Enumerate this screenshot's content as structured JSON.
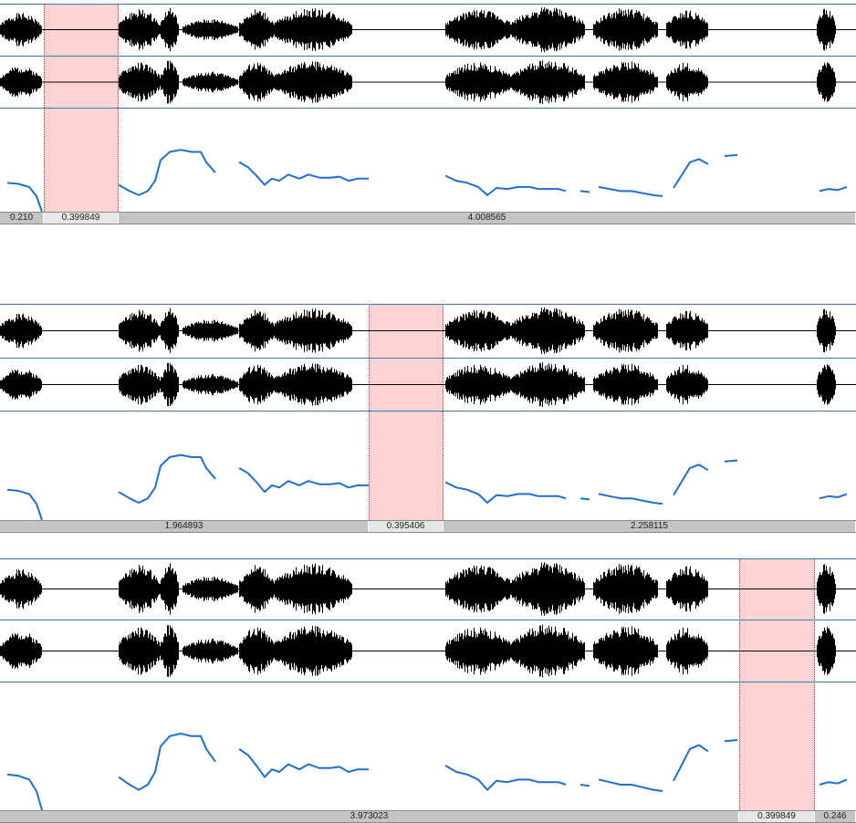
{
  "colors": {
    "waveform": "#000000",
    "pitch": "#1e6fd0",
    "selection_fill": "#ffd3d3",
    "selection_border": "#d0303a",
    "channel_line": "#3a7fa6",
    "ruler": "#c4c4c4"
  },
  "panels": [
    {
      "name": "panel-1",
      "segments": [
        {
          "label": "0.210",
          "selected": false
        },
        {
          "label": "0.399849",
          "selected": true
        },
        {
          "label": "4.008565",
          "selected": false
        }
      ]
    },
    {
      "name": "panel-2",
      "segments": [
        {
          "label": "1.964893",
          "selected": false
        },
        {
          "label": "0.395406",
          "selected": true
        },
        {
          "label": "2.258115",
          "selected": false
        }
      ]
    },
    {
      "name": "panel-3",
      "segments": [
        {
          "label": "3.973023",
          "selected": false
        },
        {
          "label": "0.399849",
          "selected": true
        },
        {
          "label": "0.246",
          "selected": false
        }
      ]
    }
  ]
}
